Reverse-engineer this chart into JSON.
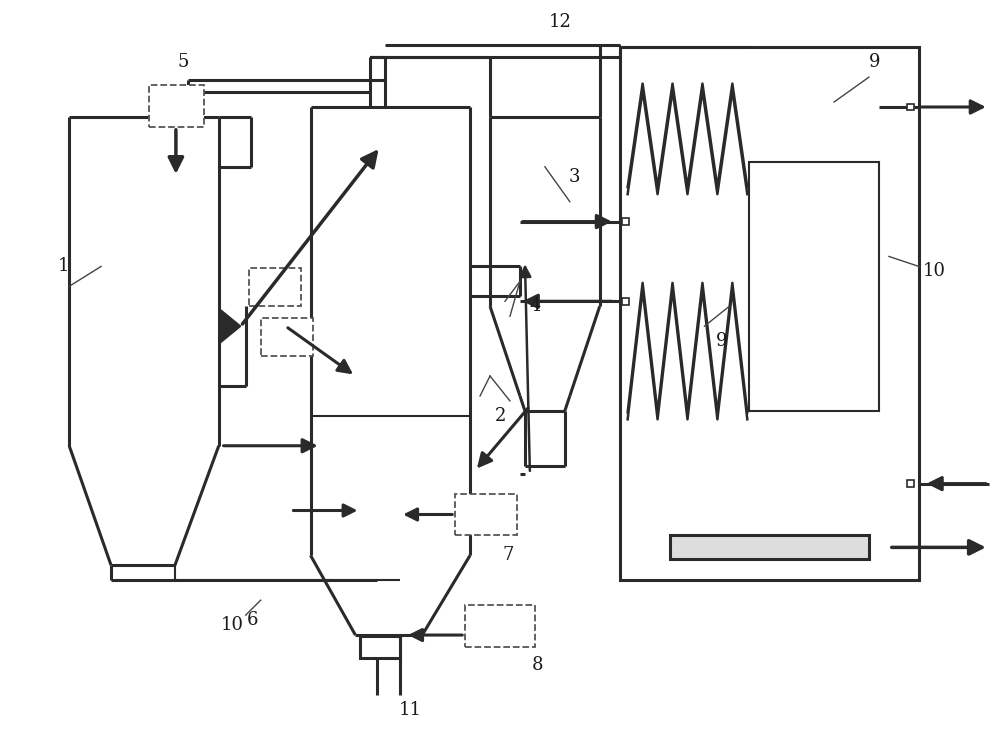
{
  "bg_color": "#ffffff",
  "line_color": "#2a2a2a",
  "figsize": [
    10.0,
    7.56
  ],
  "dpi": 100
}
